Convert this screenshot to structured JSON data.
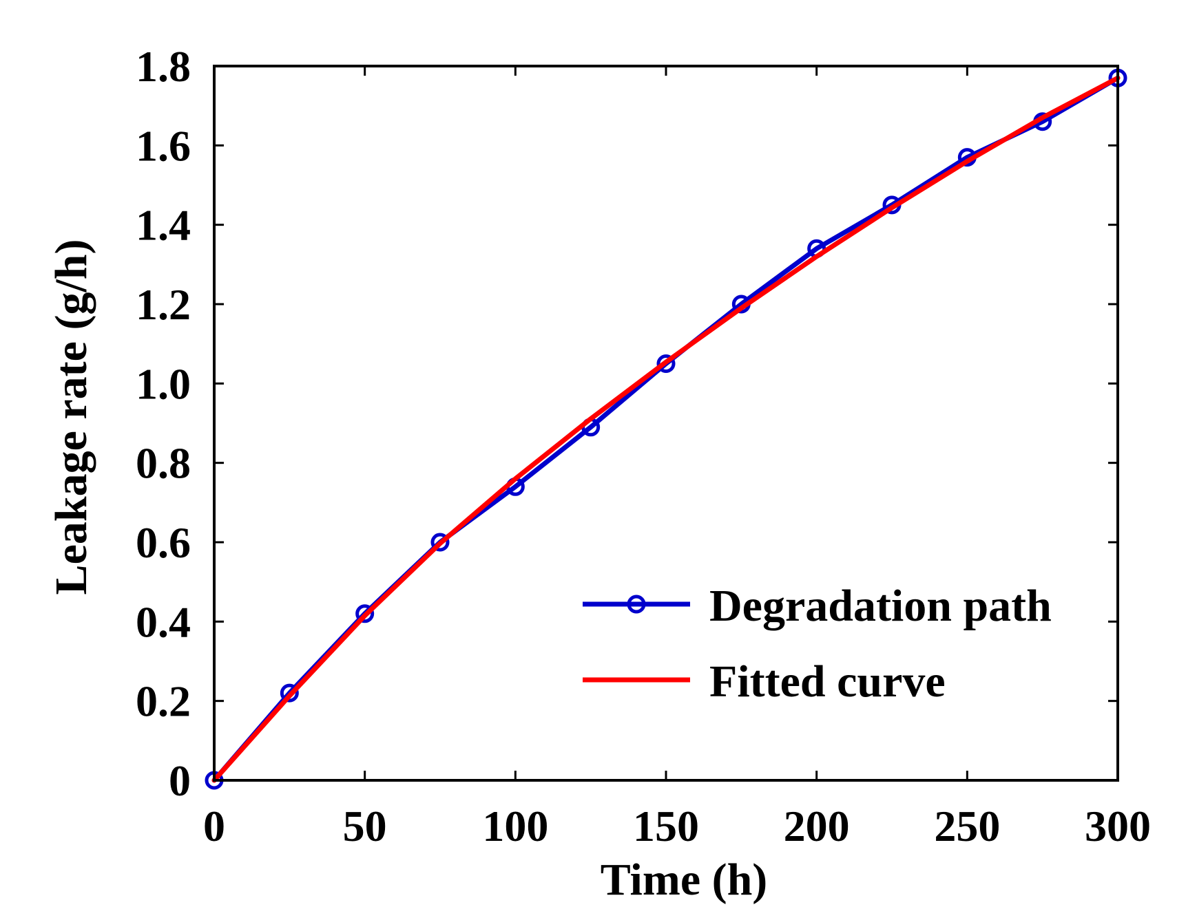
{
  "chart_data": {
    "type": "line",
    "title": "",
    "xlabel": "Time (h)",
    "ylabel": "Leakage rate (g/h)",
    "xlim": [
      0,
      300
    ],
    "ylim": [
      0,
      1.8
    ],
    "xticks": [
      0,
      50,
      100,
      150,
      200,
      250,
      300
    ],
    "xtick_labels": [
      "0",
      "50",
      "100",
      "150",
      "200",
      "250",
      "300"
    ],
    "yticks": [
      0,
      0.2,
      0.4,
      0.6,
      0.8,
      1.0,
      1.2,
      1.4,
      1.6,
      1.8
    ],
    "ytick_labels": [
      "0",
      "0.2",
      "0.4",
      "0.6",
      "0.8",
      "1.0",
      "1.2",
      "1.4",
      "1.6",
      "1.8"
    ],
    "grid": false,
    "legend_position": "bottom-right",
    "series": [
      {
        "name": "Degradation path",
        "color": "#0000cc",
        "marker": "circle",
        "x": [
          0,
          25,
          50,
          75,
          100,
          125,
          150,
          175,
          200,
          225,
          250,
          275,
          300
        ],
        "y": [
          0,
          0.22,
          0.42,
          0.6,
          0.74,
          0.89,
          1.05,
          1.2,
          1.34,
          1.45,
          1.57,
          1.66,
          1.77
        ]
      },
      {
        "name": "Fitted curve",
        "color": "#ff0000",
        "marker": "none",
        "x": [
          0,
          25,
          50,
          75,
          100,
          125,
          150,
          175,
          200,
          225,
          250,
          275,
          300
        ],
        "y": [
          0,
          0.213,
          0.415,
          0.597,
          0.76,
          0.911,
          1.054,
          1.19,
          1.32,
          1.443,
          1.56,
          1.67,
          1.77
        ]
      }
    ]
  }
}
